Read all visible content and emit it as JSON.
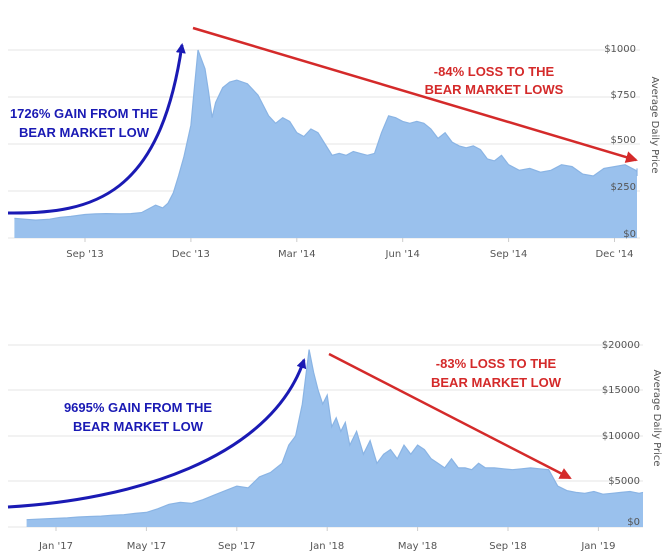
{
  "chart_data": [
    {
      "type": "area",
      "ylabel": "Average Daily Price",
      "ylim": [
        0,
        1000
      ],
      "y_tick_labels": [
        "$0",
        "$250",
        "$500",
        "$750",
        "$1000"
      ],
      "x_tick_labels": [
        "Sep '13",
        "Dec '13",
        "Mar '14",
        "Jun '14",
        "Sep '14",
        "Dec '14"
      ],
      "x_tick_months": [
        2,
        5,
        8,
        11,
        14,
        17
      ],
      "grid": true,
      "fill_color": "#9ac1ed",
      "line_color": "#8ab4e4",
      "series": [
        {
          "x": [
            0,
            0.3,
            0.6,
            1.0,
            1.3,
            1.6,
            2.0,
            2.3,
            2.6,
            3.0,
            3.3,
            3.6,
            4.0,
            4.2,
            4.35,
            4.5,
            4.65,
            4.8,
            5.0,
            5.1,
            5.2,
            5.3,
            5.4,
            5.5,
            5.6,
            5.7,
            5.8,
            5.9,
            6.1,
            6.3,
            6.6,
            6.9,
            7.2,
            7.4,
            7.6,
            7.8,
            8.0,
            8.2,
            8.4,
            8.6,
            8.8,
            9.0,
            9.2,
            9.4,
            9.6,
            9.8,
            10.0,
            10.2,
            10.4,
            10.6,
            10.8,
            11.0,
            11.2,
            11.4,
            11.6,
            11.8,
            12.0,
            12.2,
            12.4,
            12.6,
            12.8,
            13.0,
            13.2,
            13.4,
            13.6,
            13.8,
            14.0,
            14.3,
            14.6,
            14.9,
            15.2,
            15.5,
            15.8,
            16.1,
            16.4,
            16.7,
            17.0,
            17.3,
            17.6,
            17.9,
            18.1,
            18.3
          ],
          "values": [
            105,
            100,
            95,
            100,
            110,
            115,
            125,
            128,
            130,
            128,
            130,
            135,
            175,
            160,
            185,
            240,
            330,
            430,
            600,
            800,
            1000,
            950,
            900,
            780,
            640,
            720,
            760,
            800,
            830,
            840,
            820,
            760,
            650,
            610,
            640,
            620,
            560,
            540,
            580,
            560,
            500,
            440,
            450,
            440,
            460,
            450,
            440,
            450,
            560,
            650,
            640,
            620,
            610,
            620,
            610,
            580,
            530,
            560,
            510,
            490,
            480,
            490,
            470,
            420,
            410,
            440,
            390,
            360,
            370,
            350,
            360,
            390,
            380,
            340,
            330,
            370,
            380,
            390,
            360,
            350,
            330,
            370
          ]
        }
      ],
      "annotations": [
        {
          "text_lines": [
            "1726% GAIN FROM THE",
            "BEAR MARKET LOW"
          ],
          "color": "#1a1ab4"
        },
        {
          "text_lines": [
            "-84% LOSS TO THE",
            "BEAR MARKET LOWS"
          ],
          "color": "#d42a2a"
        }
      ]
    },
    {
      "type": "area",
      "ylabel": "Average Daily Price",
      "ylim": [
        0,
        20000
      ],
      "y_tick_labels": [
        "$0",
        "$5000",
        "$10000",
        "$15000",
        "$20000"
      ],
      "x_tick_labels": [
        "Jan '17",
        "May '17",
        "Sep '17",
        "Jan '18",
        "May '18",
        "Sep '18",
        "Jan '19"
      ],
      "x_tick_months": [
        0,
        4,
        8,
        12,
        16,
        20,
        24
      ],
      "grid": true,
      "fill_color": "#9ac1ed",
      "line_color": "#8ab4e4",
      "series": [
        {
          "x": [
            -1.3,
            -0.5,
            0,
            0.5,
            1.0,
            1.5,
            2.0,
            2.5,
            3.0,
            3.5,
            4.0,
            4.5,
            5.0,
            5.5,
            6.0,
            6.5,
            7.0,
            7.5,
            8.0,
            8.5,
            9.0,
            9.5,
            10.0,
            10.3,
            10.6,
            10.9,
            11.2,
            11.4,
            11.6,
            11.8,
            12.0,
            12.2,
            12.4,
            12.6,
            12.8,
            13.0,
            13.3,
            13.6,
            13.9,
            14.2,
            14.5,
            14.8,
            15.1,
            15.4,
            15.7,
            16.0,
            16.3,
            16.6,
            16.9,
            17.2,
            17.5,
            17.8,
            18.1,
            18.4,
            18.7,
            19.0,
            19.4,
            19.8,
            20.2,
            20.6,
            21.0,
            21.4,
            21.8,
            22.2,
            22.6,
            23.0,
            23.4,
            23.8,
            24.2,
            24.6,
            25.0,
            25.4,
            25.8,
            26.2
          ],
          "values": [
            800,
            900,
            950,
            1000,
            1100,
            1150,
            1200,
            1300,
            1350,
            1500,
            1600,
            2000,
            2500,
            2700,
            2600,
            3000,
            3500,
            4000,
            4500,
            4300,
            5500,
            6000,
            7000,
            9000,
            10000,
            13500,
            19500,
            17000,
            15000,
            13500,
            14500,
            11000,
            12000,
            10500,
            11500,
            9000,
            10500,
            8000,
            9500,
            7000,
            8000,
            8500,
            7500,
            9000,
            8000,
            9000,
            8500,
            7500,
            7000,
            6500,
            7500,
            6500,
            6500,
            6300,
            7000,
            6500,
            6500,
            6400,
            6300,
            6400,
            6500,
            6400,
            6300,
            4500,
            4000,
            3800,
            3700,
            3900,
            3600,
            3700,
            3800,
            3900,
            3700,
            3800
          ]
        }
      ],
      "annotations": [
        {
          "text_lines": [
            "9695% GAIN FROM THE",
            "BEAR MARKET LOW"
          ],
          "color": "#1a1ab4"
        },
        {
          "text_lines": [
            "-83% LOSS TO THE",
            "BEAR MARKET LOW"
          ],
          "color": "#d42a2a"
        }
      ]
    }
  ]
}
